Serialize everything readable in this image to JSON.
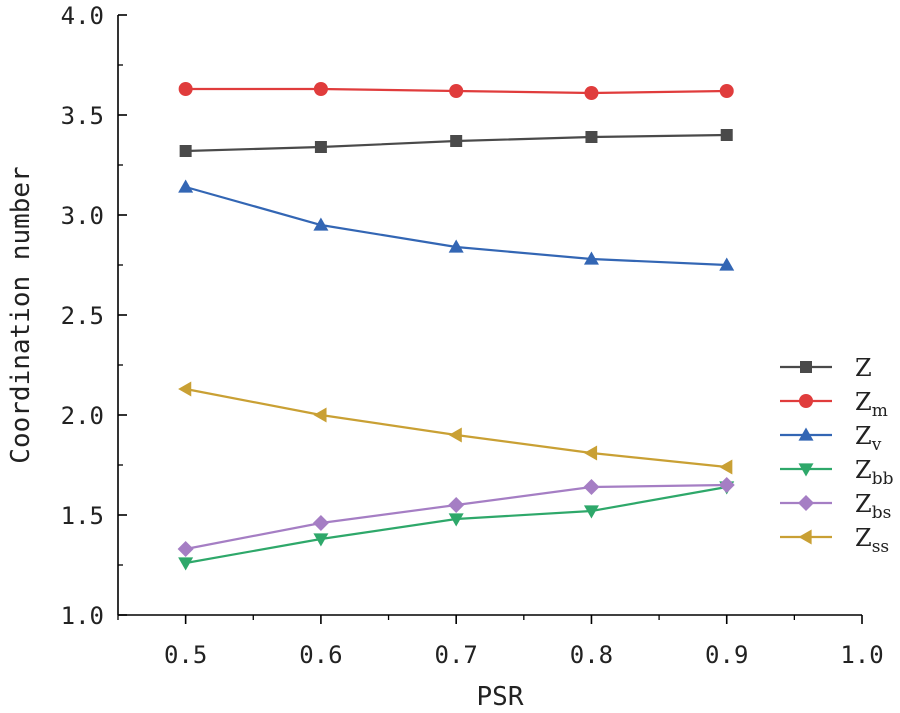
{
  "chart_data": {
    "type": "line",
    "xlabel": "PSR",
    "ylabel": "Coordination number",
    "xlim": [
      0.45,
      1.0
    ],
    "ylim": [
      1.0,
      4.0
    ],
    "x_ticks": [
      "0.5",
      "0.6",
      "0.7",
      "0.8",
      "0.9",
      "1.0"
    ],
    "y_ticks": [
      "1.0",
      "1.5",
      "2.0",
      "2.5",
      "3.0",
      "3.5",
      "4.0"
    ],
    "x": [
      0.5,
      0.6,
      0.7,
      0.8,
      0.9
    ],
    "legend_position": "right",
    "grid": false,
    "series": [
      {
        "name": "Z",
        "sub": "",
        "color": "#4a4a4a",
        "marker": "square",
        "values": [
          3.32,
          3.34,
          3.37,
          3.39,
          3.4
        ]
      },
      {
        "name": "Z",
        "sub": "m",
        "color": "#e03c3c",
        "marker": "circle",
        "values": [
          3.63,
          3.63,
          3.62,
          3.61,
          3.62
        ]
      },
      {
        "name": "Z",
        "sub": "v",
        "color": "#3366b4",
        "marker": "triangle-up",
        "values": [
          3.14,
          2.95,
          2.84,
          2.78,
          2.75
        ]
      },
      {
        "name": "Z",
        "sub": "bb",
        "color": "#2ea86a",
        "marker": "triangle-down",
        "values": [
          1.26,
          1.38,
          1.48,
          1.52,
          1.64
        ]
      },
      {
        "name": "Z",
        "sub": "bs",
        "color": "#a57ec4",
        "marker": "diamond",
        "values": [
          1.33,
          1.46,
          1.55,
          1.64,
          1.65
        ]
      },
      {
        "name": "Z",
        "sub": "ss",
        "color": "#c9a034",
        "marker": "triangle-left",
        "values": [
          2.13,
          2.0,
          1.9,
          1.81,
          1.74
        ]
      }
    ]
  }
}
